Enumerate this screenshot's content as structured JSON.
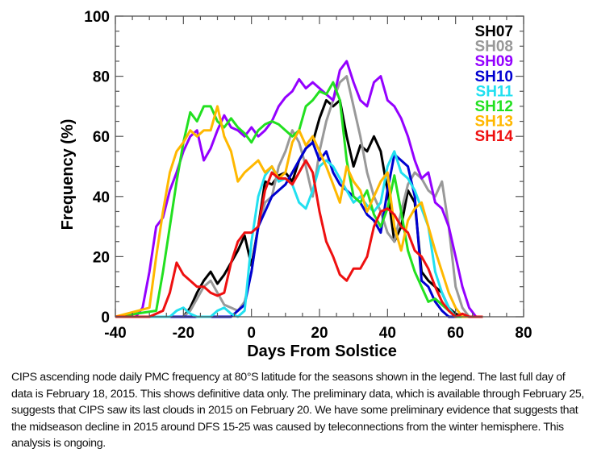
{
  "chart_data": {
    "type": "line",
    "title": "",
    "xlabel": "Days From Solstice",
    "ylabel": "Frequency (%)",
    "xlim": [
      -40,
      80
    ],
    "ylim": [
      0,
      100
    ],
    "xticks": [
      -40,
      -20,
      0,
      20,
      40,
      60,
      80
    ],
    "yticks": [
      0,
      20,
      40,
      60,
      80,
      100
    ],
    "grid": false,
    "legend_position": "top-right",
    "series": [
      {
        "name": "SH07",
        "color": "#000000",
        "x": [
          -40,
          -24,
          -22,
          -20,
          -18,
          -16,
          -14,
          -12,
          -10,
          -8,
          -6,
          -4,
          -2,
          0,
          2,
          4,
          6,
          8,
          10,
          12,
          14,
          16,
          18,
          20,
          22,
          24,
          26,
          28,
          30,
          32,
          34,
          36,
          38,
          40,
          42,
          44,
          46,
          48,
          50,
          52,
          54,
          56,
          58,
          60,
          62,
          64,
          66,
          68
        ],
        "values": [
          0,
          0,
          0,
          0,
          3,
          8,
          12,
          15,
          11,
          14,
          18,
          22,
          27,
          17,
          30,
          45,
          44,
          47,
          48,
          45,
          52,
          56,
          58,
          66,
          72,
          70,
          72,
          60,
          50,
          57,
          55,
          60,
          55,
          42,
          25,
          30,
          42,
          38,
          15,
          12,
          10,
          8,
          3,
          1,
          0,
          0,
          0,
          0
        ]
      },
      {
        "name": "SH08",
        "color": "#999999",
        "x": [
          -40,
          -24,
          -22,
          -20,
          -18,
          -16,
          -14,
          -12,
          -10,
          -8,
          -6,
          -4,
          -2,
          0,
          2,
          4,
          6,
          8,
          10,
          12,
          14,
          16,
          18,
          20,
          22,
          24,
          26,
          28,
          30,
          32,
          34,
          36,
          38,
          40,
          42,
          44,
          46,
          48,
          50,
          52,
          54,
          56,
          58,
          60,
          62,
          64,
          66,
          68
        ],
        "values": [
          0,
          0,
          0,
          0,
          2,
          6,
          10,
          12,
          8,
          4,
          3,
          2,
          5,
          15,
          30,
          38,
          40,
          50,
          55,
          62,
          58,
          50,
          40,
          55,
          65,
          72,
          78,
          80,
          70,
          60,
          48,
          40,
          35,
          28,
          25,
          35,
          44,
          48,
          46,
          42,
          40,
          45,
          30,
          10,
          3,
          0,
          0,
          0
        ]
      },
      {
        "name": "SH09",
        "color": "#9400ff",
        "x": [
          -40,
          -34,
          -32,
          -30,
          -28,
          -26,
          -24,
          -22,
          -20,
          -18,
          -16,
          -14,
          -12,
          -10,
          -8,
          -6,
          -4,
          -2,
          0,
          2,
          4,
          6,
          8,
          10,
          12,
          14,
          16,
          18,
          20,
          22,
          24,
          26,
          28,
          30,
          32,
          34,
          36,
          38,
          40,
          42,
          44,
          46,
          48,
          50,
          52,
          54,
          56,
          58,
          60,
          62,
          64,
          66,
          68
        ],
        "values": [
          0,
          0,
          3,
          15,
          30,
          33,
          42,
          48,
          55,
          60,
          62,
          52,
          56,
          62,
          67,
          63,
          62,
          60,
          63,
          60,
          62,
          65,
          70,
          73,
          75,
          79,
          76,
          78,
          76,
          74,
          72,
          82,
          85,
          78,
          72,
          70,
          78,
          80,
          72,
          70,
          66,
          60,
          52,
          46,
          48,
          38,
          36,
          30,
          20,
          10,
          3,
          0,
          0
        ]
      },
      {
        "name": "SH10",
        "color": "#0000d0",
        "x": [
          -40,
          -6,
          -4,
          -2,
          0,
          2,
          4,
          6,
          8,
          10,
          12,
          14,
          16,
          18,
          20,
          22,
          24,
          26,
          28,
          30,
          32,
          34,
          36,
          38,
          40,
          42,
          44,
          46,
          48,
          50,
          52,
          54,
          56,
          58,
          60,
          62,
          64,
          66,
          68
        ],
        "values": [
          0,
          0,
          2,
          4,
          15,
          30,
          35,
          40,
          42,
          44,
          48,
          52,
          56,
          58,
          52,
          55,
          48,
          44,
          42,
          40,
          38,
          34,
          32,
          28,
          42,
          54,
          52,
          50,
          40,
          12,
          10,
          5,
          2,
          0,
          0,
          0,
          0,
          0,
          0
        ]
      },
      {
        "name": "SH11",
        "color": "#22e0f0",
        "x": [
          -40,
          -24,
          -22,
          -20,
          -18,
          -16,
          -14,
          -12,
          -10,
          -8,
          -6,
          -4,
          -2,
          0,
          2,
          4,
          6,
          8,
          10,
          12,
          14,
          16,
          18,
          20,
          22,
          24,
          26,
          28,
          30,
          32,
          34,
          36,
          38,
          40,
          42,
          44,
          46,
          48,
          50,
          52,
          54,
          56,
          58,
          60,
          62,
          64,
          66,
          68
        ],
        "values": [
          0,
          0,
          2,
          3,
          1,
          0,
          0,
          0,
          2,
          3,
          1,
          0,
          2,
          25,
          40,
          47,
          50,
          45,
          46,
          44,
          38,
          36,
          42,
          50,
          52,
          50,
          46,
          42,
          38,
          40,
          37,
          35,
          38,
          50,
          55,
          48,
          46,
          42,
          36,
          30,
          15,
          8,
          3,
          0,
          0,
          0,
          0,
          0
        ]
      },
      {
        "name": "SH12",
        "color": "#22e020",
        "x": [
          -40,
          -28,
          -26,
          -24,
          -22,
          -20,
          -18,
          -16,
          -14,
          -12,
          -10,
          -8,
          -6,
          -4,
          -2,
          0,
          2,
          4,
          6,
          8,
          10,
          12,
          14,
          16,
          18,
          20,
          22,
          24,
          26,
          28,
          30,
          32,
          34,
          36,
          38,
          40,
          42,
          44,
          46,
          48,
          50,
          52,
          54,
          56,
          58,
          60,
          62,
          64,
          66,
          68
        ],
        "values": [
          0,
          2,
          15,
          30,
          45,
          58,
          68,
          65,
          70,
          70,
          65,
          63,
          66,
          63,
          61,
          58,
          62,
          64,
          65,
          64,
          62,
          60,
          62,
          70,
          72,
          75,
          74,
          78,
          72,
          52,
          40,
          38,
          42,
          34,
          30,
          36,
          47,
          35,
          22,
          15,
          10,
          5,
          6,
          4,
          2,
          0,
          0,
          0,
          0,
          0
        ]
      },
      {
        "name": "SH13",
        "color": "#ffb800",
        "x": [
          -40,
          -30,
          -28,
          -26,
          -24,
          -22,
          -20,
          -18,
          -16,
          -14,
          -12,
          -10,
          -8,
          -6,
          -4,
          -2,
          0,
          2,
          4,
          6,
          8,
          10,
          12,
          14,
          16,
          18,
          20,
          22,
          24,
          26,
          28,
          30,
          32,
          34,
          36,
          38,
          40,
          42,
          44,
          46,
          48,
          50,
          52,
          54,
          56,
          58,
          60,
          62,
          64,
          66,
          68
        ],
        "values": [
          0,
          3,
          20,
          35,
          48,
          55,
          58,
          62,
          60,
          62,
          62,
          70,
          60,
          55,
          45,
          48,
          50,
          52,
          48,
          50,
          46,
          48,
          58,
          62,
          57,
          60,
          55,
          50,
          44,
          38,
          50,
          45,
          42,
          35,
          40,
          45,
          48,
          30,
          22,
          32,
          36,
          38,
          30,
          22,
          15,
          8,
          3,
          0,
          0,
          0,
          0
        ]
      },
      {
        "name": "SH14",
        "color": "#ee1010",
        "x": [
          -40,
          -30,
          -28,
          -26,
          -24,
          -22,
          -20,
          -18,
          -16,
          -14,
          -12,
          -10,
          -8,
          -6,
          -4,
          -2,
          0,
          2,
          4,
          6,
          8,
          10,
          12,
          14,
          16,
          18,
          20,
          22,
          24,
          26,
          28,
          30,
          32,
          34,
          36,
          38,
          40,
          42,
          44,
          46,
          48,
          50,
          52,
          54,
          56,
          58,
          60,
          62,
          64,
          66,
          68
        ],
        "values": [
          0,
          0,
          1,
          2,
          8,
          18,
          14,
          12,
          10,
          10,
          8,
          7,
          8,
          18,
          25,
          28,
          28,
          30,
          42,
          48,
          46,
          46,
          44,
          48,
          52,
          48,
          35,
          25,
          20,
          14,
          12,
          16,
          16,
          20,
          30,
          35,
          36,
          34,
          30,
          28,
          22,
          20,
          16,
          10,
          5,
          2,
          0,
          1,
          0,
          0,
          0
        ]
      }
    ]
  },
  "caption": "CIPS ascending node daily PMC frequency at 80°S latitude for the seasons shown in the legend. The last full day of data is February 18, 2015. This shows definitive data only. The preliminary data, which is available through February 25, suggests that CIPS saw its last clouds in 2015 on February 20. We have some preliminary evidence that suggests that the midseason decline in 2015 around DFS 15-25 was caused by teleconnections from the winter hemisphere. This analysis is ongoing."
}
